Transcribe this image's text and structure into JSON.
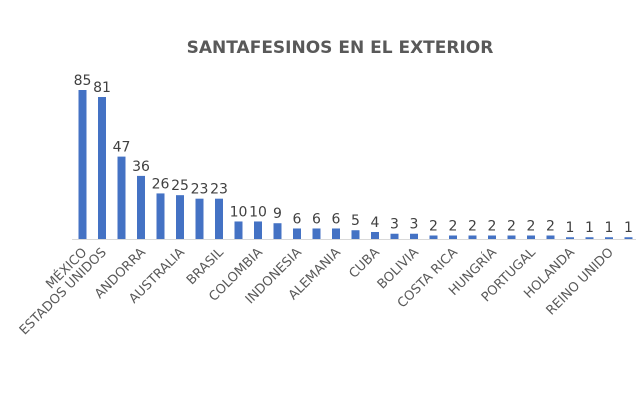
{
  "chart_data": {
    "type": "bar",
    "title": "SANTAFESINOS EN EL EXTERIOR",
    "xlabel": "",
    "ylabel": "",
    "ylim": [
      0,
      85
    ],
    "grid": false,
    "legend": "none",
    "bar_color": "#4472C4",
    "categories": [
      "MÉXICO",
      "ESTADOS UNIDOS",
      "",
      "ANDORRA",
      "",
      "AUSTRALIA",
      "",
      "BRASIL",
      "",
      "COLOMBIA",
      "",
      "INDONESIA",
      "",
      "ALEMANIA",
      "",
      "CUBA",
      "",
      "BOLIVIA",
      "",
      "COSTA RICA",
      "",
      "HUNGRÍA",
      "",
      "PORTUGAL",
      "",
      "HOLANDA",
      "",
      "REINO UNIDO",
      ""
    ],
    "visible_labels": [
      "MÉXICO",
      "ESTADOS UNIDOS",
      "ANDORRA",
      "AUSTRALIA",
      "BRASIL",
      "COLOMBIA",
      "INDONESIA",
      "ALEMANIA",
      "CUBA",
      "BOLIVIA",
      "COSTA RICA",
      "HUNGRÍA",
      "PORTUGAL",
      "HOLANDA",
      "REINO UNIDO"
    ],
    "values": [
      85,
      81,
      47,
      36,
      26,
      25,
      23,
      23,
      10,
      10,
      9,
      6,
      6,
      6,
      5,
      4,
      3,
      3,
      2,
      2,
      2,
      2,
      2,
      2,
      2,
      1,
      1,
      1,
      1
    ]
  }
}
